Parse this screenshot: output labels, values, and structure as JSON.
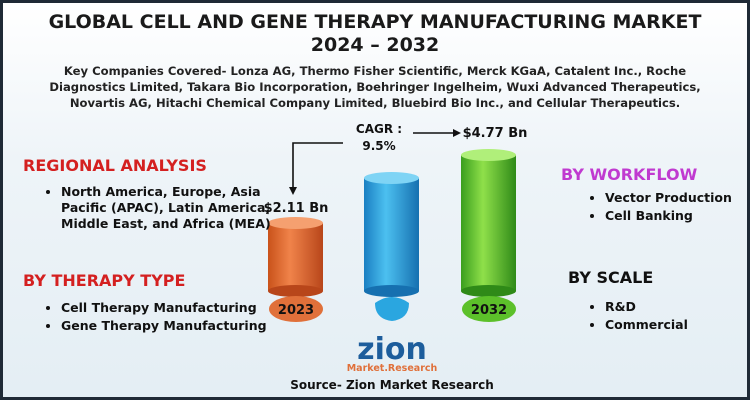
{
  "header": {
    "title_line1": "GLOBAL CELL AND GENE THERAPY MANUFACTURING MARKET",
    "title_line2": "2024 – 2032",
    "companies": "Key Companies Covered- Lonza AG, Thermo Fisher Scientific, Merck KGaA, Catalent Inc., Roche Diagnostics Limited, Takara Bio Incorporation, Boehringer Ingelheim, Wuxi Advanced Therapeutics, Novartis AG, Hitachi Chemical Company Limited, Bluebird Bio Inc., and Cellular Therapeutics."
  },
  "cagr": {
    "label": "CAGR :",
    "value": "9.5%"
  },
  "years": [
    {
      "label": "2023",
      "value": "$2.11 Bn"
    },
    {
      "label": "2032",
      "value": "$4.77 Bn"
    }
  ],
  "sections": {
    "regional": {
      "title": "REGIONAL ANALYSIS",
      "items": [
        "North America, Europe, Asia Pacific (APAC), Latin America, Middle East, and Africa (MEA)"
      ]
    },
    "therapy": {
      "title": "BY THERAPY TYPE",
      "items": [
        "Cell Therapy Manufacturing",
        "Gene Therapy Manufacturing"
      ]
    },
    "workflow": {
      "title": "BY WORKFLOW",
      "items": [
        "Vector Production",
        "Cell Banking"
      ]
    },
    "scale": {
      "title": "BY SCALE",
      "items": [
        "R&D",
        "Commercial"
      ]
    }
  },
  "logo": {
    "name": "zion",
    "sub": "Market.Research"
  },
  "source": "Source- Zion Market Research"
}
